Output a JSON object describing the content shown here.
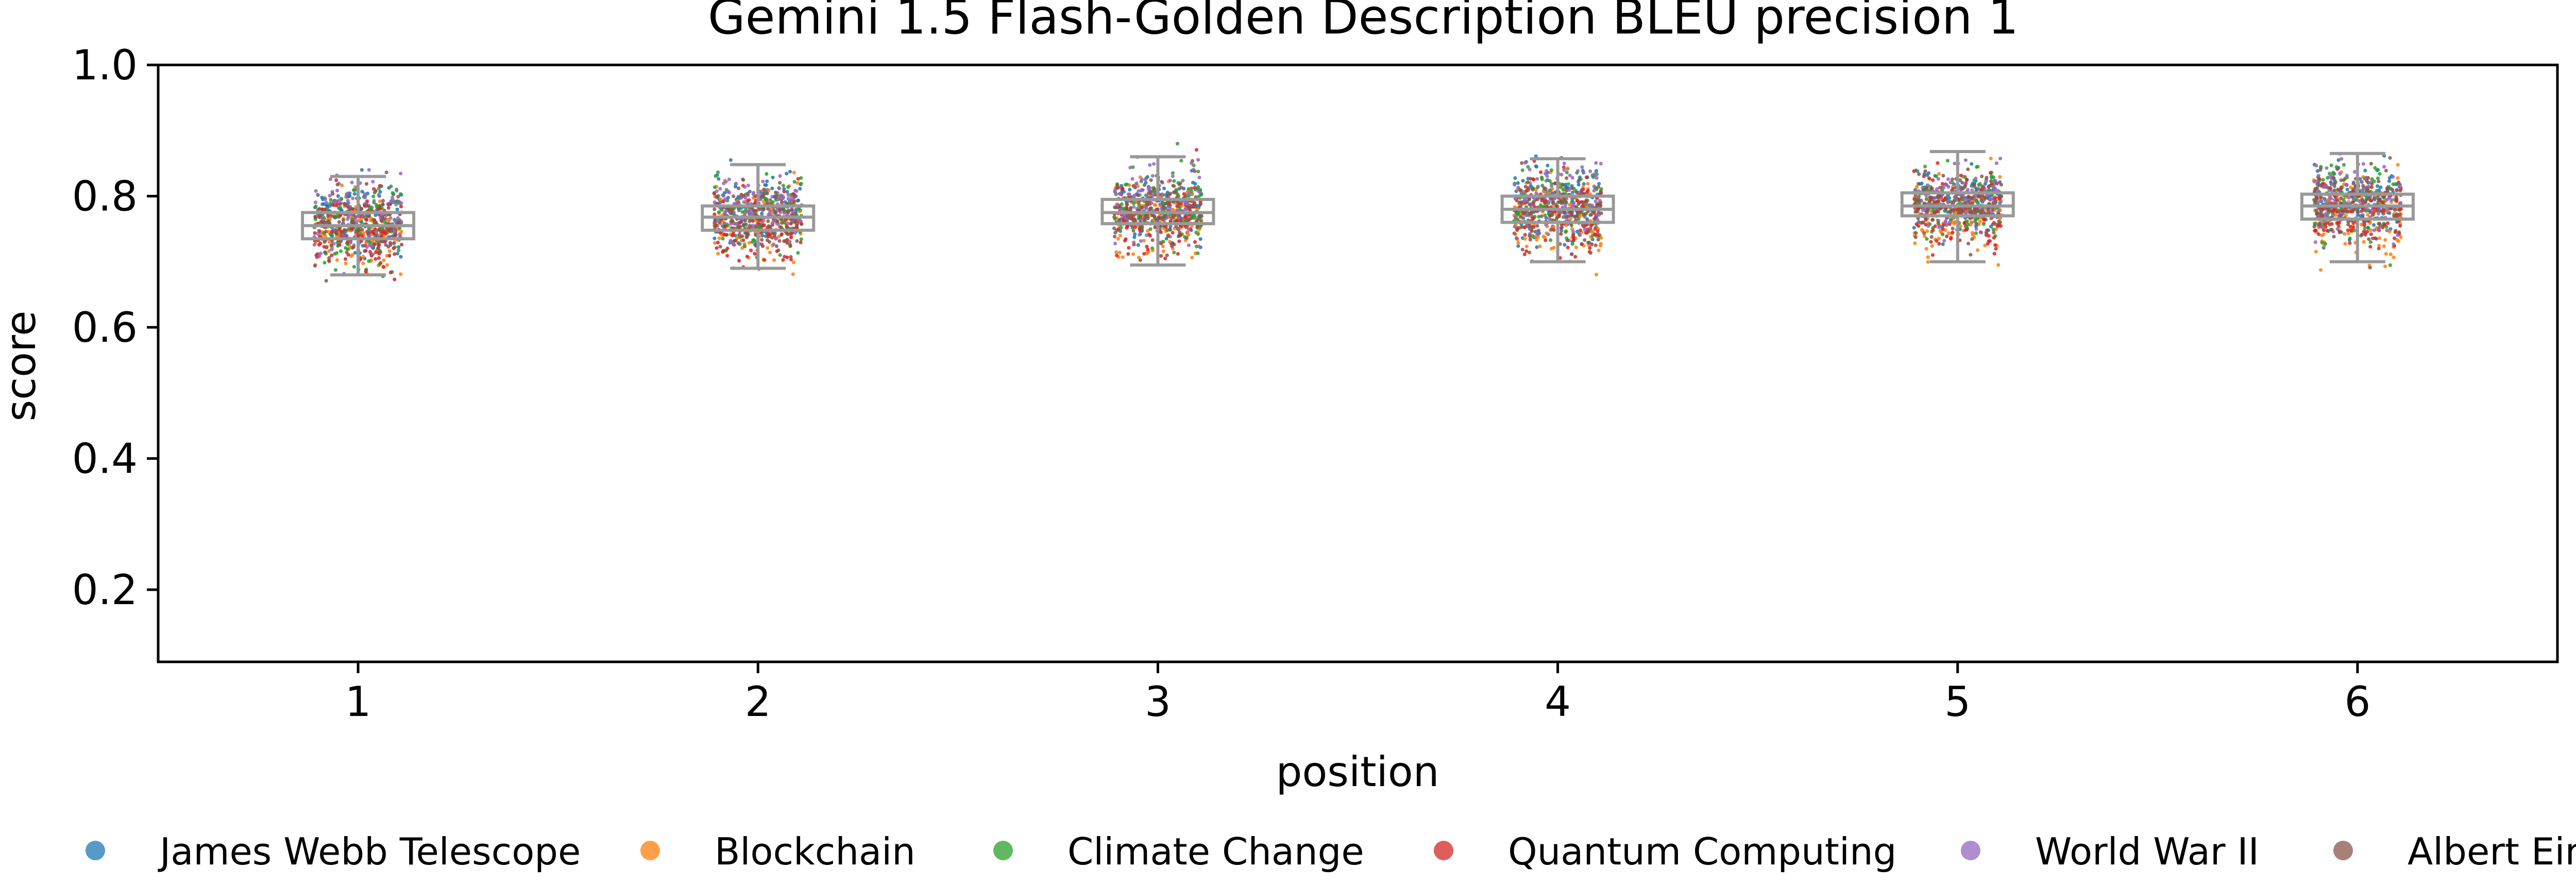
{
  "chart_data": {
    "type": "box-strip",
    "title": "Gemini 1.5 Flash-Golden Description BLEU precision 1",
    "xlabel": "position",
    "ylabel": "score",
    "categories": [
      "1",
      "2",
      "3",
      "4",
      "5",
      "6"
    ],
    "ylim": [
      0.09,
      1.0
    ],
    "yticks": [
      0.2,
      0.4,
      0.6,
      0.8,
      1.0
    ],
    "ytick_labels": [
      "0.2",
      "0.4",
      "0.6",
      "0.8",
      "1.0"
    ],
    "grid": false,
    "legend_position": "bottom",
    "box_stats": [
      {
        "position": "1",
        "whisker_low": 0.68,
        "q1": 0.735,
        "median": 0.755,
        "q3": 0.775,
        "whisker_high": 0.83,
        "min": 0.65,
        "max": 0.84
      },
      {
        "position": "2",
        "whisker_low": 0.69,
        "q1": 0.748,
        "median": 0.768,
        "q3": 0.785,
        "whisker_high": 0.848,
        "min": 0.67,
        "max": 0.855
      },
      {
        "position": "3",
        "whisker_low": 0.695,
        "q1": 0.758,
        "median": 0.775,
        "q3": 0.795,
        "whisker_high": 0.86,
        "min": 0.665,
        "max": 0.88
      },
      {
        "position": "4",
        "whisker_low": 0.7,
        "q1": 0.76,
        "median": 0.78,
        "q3": 0.8,
        "whisker_high": 0.857,
        "min": 0.655,
        "max": 0.875
      },
      {
        "position": "5",
        "whisker_low": 0.7,
        "q1": 0.77,
        "median": 0.785,
        "q3": 0.805,
        "whisker_high": 0.868,
        "min": 0.68,
        "max": 0.89
      },
      {
        "position": "6",
        "whisker_low": 0.7,
        "q1": 0.765,
        "median": 0.785,
        "q3": 0.803,
        "whisker_high": 0.865,
        "min": 0.655,
        "max": 0.88
      }
    ],
    "series": [
      {
        "name": "James Webb Telescope",
        "color": "#1f77b4",
        "mean_offset": 0.015
      },
      {
        "name": "Blockchain",
        "color": "#ff7f0e",
        "mean_offset": -0.02
      },
      {
        "name": "Climate Change",
        "color": "#2ca02c",
        "mean_offset": 0.01
      },
      {
        "name": "Quantum Computing",
        "color": "#d62728",
        "mean_offset": -0.015
      },
      {
        "name": "World War II",
        "color": "#9467bd",
        "mean_offset": 0.02
      },
      {
        "name": "Albert Einstein",
        "color": "#8c564b",
        "mean_offset": 0.0
      }
    ],
    "box_color": "#999999",
    "points_per_series_per_position": 120
  }
}
